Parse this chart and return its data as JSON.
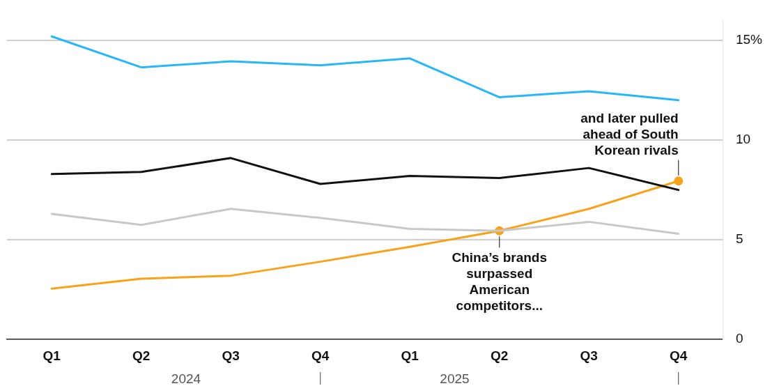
{
  "chart_data": {
    "type": "line",
    "categories": [
      "Q1",
      "Q2",
      "Q3",
      "Q4",
      "Q1",
      "Q2",
      "Q3",
      "Q4"
    ],
    "series": [
      {
        "color": "#29b6f6",
        "values": [
          15.2,
          13.65,
          13.95,
          13.75,
          14.1,
          12.15,
          12.45,
          12.0
        ]
      },
      {
        "color": "#111111",
        "values": [
          8.3,
          8.4,
          9.1,
          7.8,
          8.2,
          8.1,
          8.6,
          7.5
        ]
      },
      {
        "color": "#c8c8c8",
        "values": [
          6.3,
          5.75,
          6.55,
          6.1,
          5.55,
          5.45,
          5.9,
          5.3
        ]
      },
      {
        "color": "#f7a21b",
        "values": [
          2.55,
          3.05,
          3.2,
          3.9,
          4.65,
          5.45,
          6.55,
          7.95
        ]
      }
    ],
    "ylim": [
      0,
      16
    ],
    "yticks": [
      0,
      5,
      10,
      {
        "value": 15,
        "label": "15%"
      }
    ],
    "grid": "y",
    "legend": false,
    "marker": "none",
    "line_style": "solid",
    "annotations": [
      "China’s brands surpassed American competitors...",
      "and later pulled ahead of South Korean rivals",
      "2024",
      "2025"
    ]
  }
}
